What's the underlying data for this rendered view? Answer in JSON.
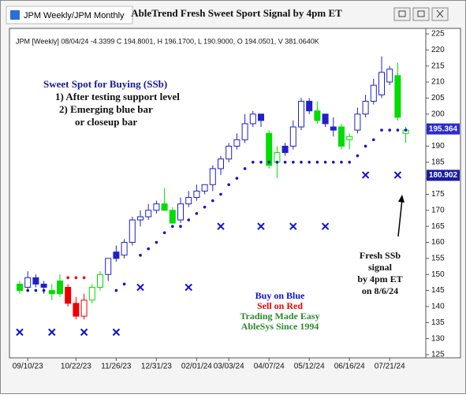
{
  "tab": "JPM Weekly/JPM Monthly",
  "chart_data": {
    "type": "candlestick",
    "title": "AbleTrend Fresh Sweet Sport Signal by 4pm ET",
    "info": "JPM [Weekly] 08/04/24 -4.3399 C 194.8001, H 196.1700, L 190.9000, O 194.0501, V 381.0640K",
    "categories": [
      null,
      "09/10/23",
      null,
      null,
      null,
      null,
      null,
      "10/22/23",
      null,
      null,
      null,
      null,
      "11/26/23",
      null,
      null,
      null,
      null,
      "12/31/23",
      null,
      null,
      null,
      null,
      "02/01/24",
      null,
      null,
      null,
      "03/03/24",
      null,
      null,
      null,
      null,
      "04/07/24",
      null,
      null,
      null,
      null,
      "05/12/24",
      null,
      null,
      null,
      null,
      "06/16/24",
      null,
      null,
      null,
      null,
      "07/21/24",
      null,
      null
    ],
    "candles": [
      [
        147,
        148,
        144,
        145
      ],
      [
        146,
        151,
        145,
        149
      ],
      [
        149,
        150,
        146,
        147
      ],
      [
        147,
        148,
        144,
        146
      ],
      [
        145,
        147,
        142,
        144
      ],
      [
        148,
        150,
        143,
        144
      ],
      [
        146,
        147,
        140,
        141
      ],
      [
        141,
        143,
        136,
        137
      ],
      [
        137,
        144,
        136,
        142
      ],
      [
        142,
        147,
        141,
        146
      ],
      [
        146,
        151,
        145,
        150
      ],
      [
        150,
        155,
        148,
        155
      ],
      [
        157,
        159,
        154,
        155
      ],
      [
        156,
        161,
        155,
        160
      ],
      [
        160,
        168,
        159,
        167
      ],
      [
        167,
        170,
        165,
        168
      ],
      [
        168,
        172,
        167,
        170
      ],
      [
        170,
        173,
        169,
        172
      ],
      [
        172,
        177,
        170,
        170
      ],
      [
        170,
        171,
        166,
        166
      ],
      [
        167,
        174,
        166,
        172
      ],
      [
        172,
        176,
        171,
        174
      ],
      [
        174,
        178,
        173,
        176
      ],
      [
        176,
        178,
        175,
        178
      ],
      [
        178,
        184,
        176,
        183
      ],
      [
        183,
        187,
        181,
        186
      ],
      [
        186,
        191,
        185,
        190
      ],
      [
        190,
        194,
        189,
        192
      ],
      [
        192,
        200,
        191,
        197
      ],
      [
        197,
        201,
        196,
        200
      ],
      [
        200,
        200,
        196,
        198
      ],
      [
        194,
        195,
        183,
        184
      ],
      [
        185,
        190,
        180,
        188
      ],
      [
        190,
        191,
        187,
        188
      ],
      [
        190,
        198,
        189,
        196
      ],
      [
        196,
        205,
        195,
        204
      ],
      [
        204,
        205,
        200,
        201
      ],
      [
        201,
        204,
        197,
        198
      ],
      [
        200,
        200,
        196,
        197
      ],
      [
        196,
        199,
        193,
        195
      ],
      [
        196,
        197,
        189,
        190
      ],
      [
        192,
        194,
        189,
        193
      ],
      [
        195,
        202,
        194,
        200
      ],
      [
        200,
        206,
        199,
        204
      ],
      [
        204,
        211,
        203,
        209
      ],
      [
        206,
        218,
        205,
        213
      ],
      [
        210,
        215,
        209,
        214
      ],
      [
        212,
        216,
        198,
        199
      ],
      [
        194,
        196,
        191,
        195
      ]
    ],
    "candle_colors": [
      "#00dd00",
      "#2020c8",
      "#2020c8",
      "#2020c8",
      "#00dd00",
      "#00dd00",
      "#ee0000",
      "#ee0000",
      "#ee0000",
      "#00dd00",
      "#00dd00",
      "#2020c8",
      "#2020c8",
      "#2020c8",
      "#2020c8",
      "#2020c8",
      "#2020c8",
      "#2020c8",
      "#00dd00",
      "#00dd00",
      "#2020c8",
      "#2020c8",
      "#2020c8",
      "#2020c8",
      "#2020c8",
      "#2020c8",
      "#2020c8",
      "#2020c8",
      "#2020c8",
      "#2020c8",
      "#2020c8",
      "#00dd00",
      "#00dd00",
      "#2020c8",
      "#2020c8",
      "#2020c8",
      "#2020c8",
      "#00dd00",
      "#2020c8",
      "#2020c8",
      "#00dd00",
      "#00dd00",
      "#2020c8",
      "#2020c8",
      "#2020c8",
      "#2020c8",
      "#2020c8",
      "#00dd00",
      "#00dd00"
    ],
    "blue_dots": {
      "color": "#1010d0",
      "values": [
        null,
        145,
        145,
        145,
        null,
        null,
        null,
        null,
        null,
        null,
        null,
        null,
        145,
        147,
        null,
        156,
        158,
        160,
        163,
        165,
        165,
        167,
        169,
        171,
        173,
        175,
        178,
        180,
        183,
        185,
        185,
        185,
        185,
        185,
        185,
        185,
        185,
        185,
        185,
        185,
        185,
        185,
        187,
        190,
        192,
        195,
        195,
        195,
        195
      ]
    },
    "red_dots": {
      "color": "#ee0000",
      "values": [
        null,
        null,
        null,
        null,
        null,
        null,
        149,
        149,
        149,
        null,
        null,
        null,
        null,
        null,
        null,
        null,
        null,
        null,
        null,
        null,
        null,
        null,
        null,
        null,
        null,
        null,
        null,
        null,
        null,
        null,
        null,
        null,
        null,
        null,
        null,
        null,
        null,
        null,
        null,
        null,
        null,
        null,
        null,
        null,
        null,
        null,
        null,
        null,
        null
      ]
    },
    "x_marks": {
      "color": "#1010d0",
      "values": [
        132,
        null,
        null,
        null,
        132,
        null,
        null,
        null,
        132,
        null,
        null,
        null,
        132,
        null,
        null,
        146,
        null,
        null,
        null,
        null,
        null,
        146,
        null,
        null,
        null,
        165,
        null,
        null,
        null,
        null,
        165,
        null,
        null,
        null,
        165,
        null,
        null,
        null,
        165,
        null,
        null,
        null,
        null,
        181,
        null,
        null,
        null,
        181,
        null
      ]
    },
    "price_labels": [
      {
        "value": 195.364,
        "label": "195.364",
        "color": "#2a2ad0"
      },
      {
        "value": 180.902,
        "label": "180.902",
        "color": "#1a1aa0"
      }
    ],
    "ylim": [
      125,
      225
    ],
    "yticks": [
      125,
      130,
      135,
      140,
      145,
      150,
      155,
      160,
      165,
      170,
      175,
      180,
      185,
      190,
      195,
      200,
      205,
      210,
      215,
      220,
      225
    ],
    "sweet_spot": [
      "Sweet Spot for Buying (SSb)",
      "1) After testing support level",
      "2) Emerging blue bar",
      "or closeup bar"
    ],
    "fresh_note": [
      "Fresh SSb",
      "signal",
      "by 4pm ET",
      "on 8/6/24"
    ],
    "legend_notes": [
      {
        "text": "Buy on Blue",
        "color": "#1010d0"
      },
      {
        "text": "Sell on Red",
        "color": "#ee0000"
      },
      {
        "text": "Trading Made Easy",
        "color": "#2a8a2a"
      },
      {
        "text": "AbleSys Since 1994",
        "color": "#2a8a2a"
      }
    ]
  }
}
